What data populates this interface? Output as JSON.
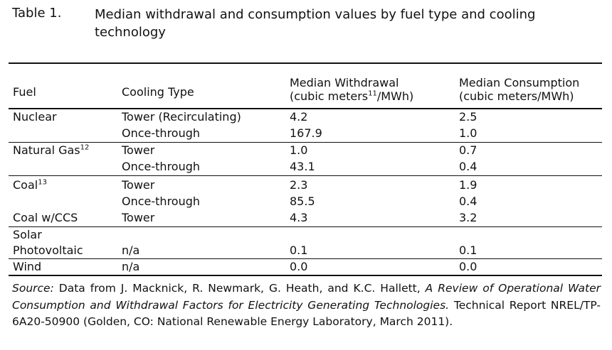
{
  "caption": {
    "label": "Table 1.",
    "title": "Median withdrawal and consumption values by fuel type and cooling technology"
  },
  "headers": {
    "fuel": "Fuel",
    "cooling": "Cooling Type",
    "withdrawal_line1": "Median Withdrawal",
    "withdrawal_line2_pre": "(cubic meters",
    "withdrawal_sup": "11",
    "withdrawal_line2_post": "/MWh)",
    "consumption_line1": "Median Consumption",
    "consumption_line2": "(cubic meters/MWh)"
  },
  "rows": {
    "nuclear": {
      "fuel": "Nuclear",
      "r1": {
        "cooling": "Tower (Recirculating)",
        "withdrawal": "4.2",
        "consumption": "2.5"
      },
      "r2": {
        "cooling": "Once-through",
        "withdrawal": "167.9",
        "consumption": "1.0"
      }
    },
    "gas": {
      "fuel": "Natural Gas",
      "sup": "12",
      "r1": {
        "cooling": "Tower",
        "withdrawal": "1.0",
        "consumption": "0.7"
      },
      "r2": {
        "cooling": "Once-through",
        "withdrawal": "43.1",
        "consumption": "0.4"
      }
    },
    "coal": {
      "fuel": "Coal",
      "sup": "13",
      "r1": {
        "cooling": "Tower",
        "withdrawal": "2.3",
        "consumption": "1.9"
      },
      "r2": {
        "cooling": "Once-through",
        "withdrawal": "85.5",
        "consumption": "0.4"
      }
    },
    "ccs": {
      "fuel": "Coal w/CCS",
      "cooling": "Tower",
      "withdrawal": "4.3",
      "consumption": "3.2"
    },
    "solar": {
      "fuel1": "Solar",
      "fuel2": "Photovoltaic",
      "cooling": "n/a",
      "withdrawal": "0.1",
      "consumption": "0.1"
    },
    "wind": {
      "fuel": "Wind",
      "cooling": "n/a",
      "withdrawal": "0.0",
      "consumption": "0.0"
    }
  },
  "source": {
    "label": "Source:",
    "part1": " Data from J. Macknick, R. Newmark, G. Heath, and K.C. Hallett, ",
    "title": "A Review of Operational Water Consumption and Withdrawal Factors for Electricity Generating Technologies.",
    "part2": " Technical Report NREL/TP-6A20-50900 (Golden, CO: National Renewable Energy Laboratory, March 2011)."
  }
}
